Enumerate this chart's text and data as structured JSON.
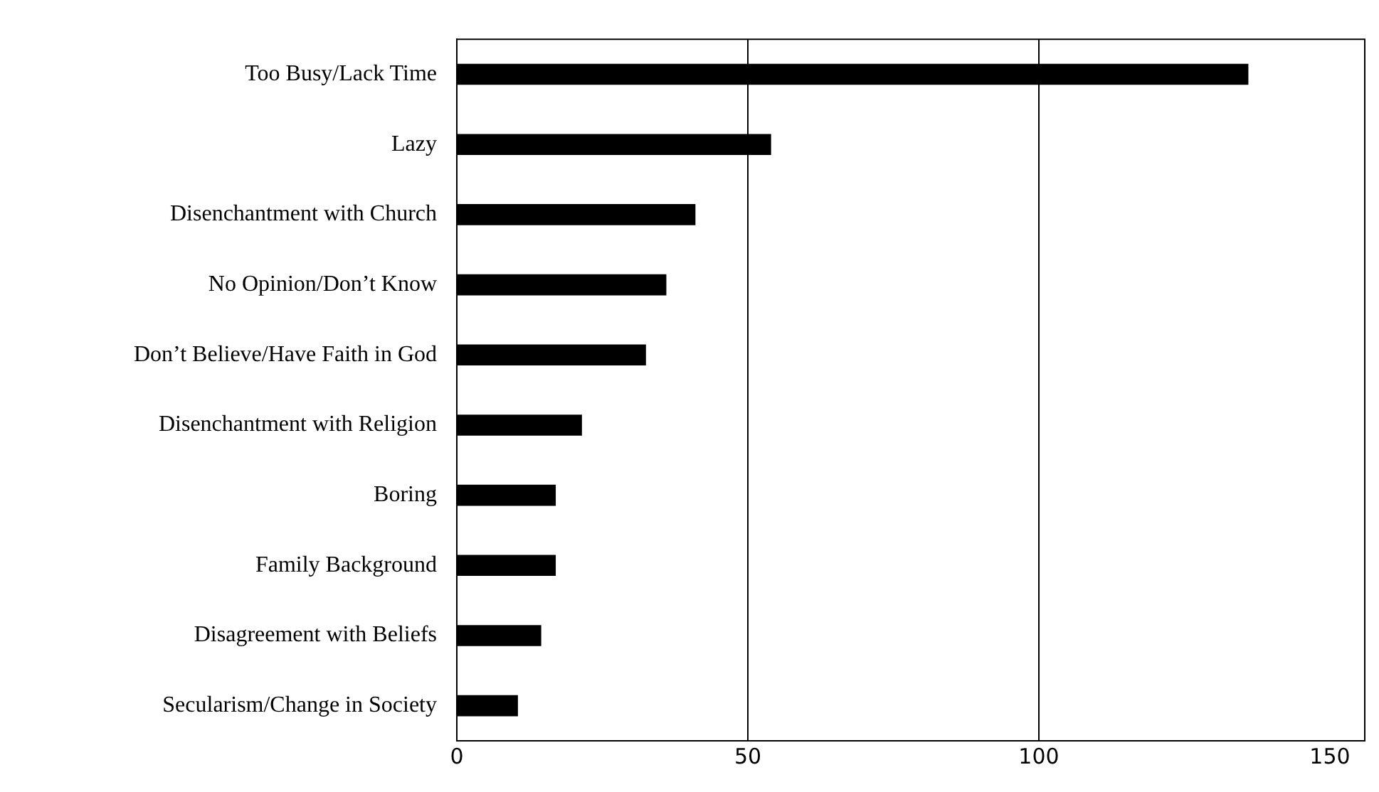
{
  "chart_data": {
    "type": "bar",
    "orientation": "horizontal",
    "categories": [
      "Too Busy/Lack Time",
      "Lazy",
      "Disenchantment with Church",
      "No Opinion/Don’t Know",
      "Don’t Believe/Have Faith in God",
      "Disenchantment with Religion",
      "Boring",
      "Family Background",
      "Disagreement with Beliefs",
      "Secularism/Change in Society"
    ],
    "values": [
      136,
      54,
      41,
      36,
      32.5,
      21.5,
      17,
      17,
      14.5,
      10.5
    ],
    "color": "#000000",
    "xlim": [
      0,
      156
    ],
    "xticks": [
      0,
      50,
      100,
      150
    ],
    "grid": "x",
    "legend": false
  }
}
